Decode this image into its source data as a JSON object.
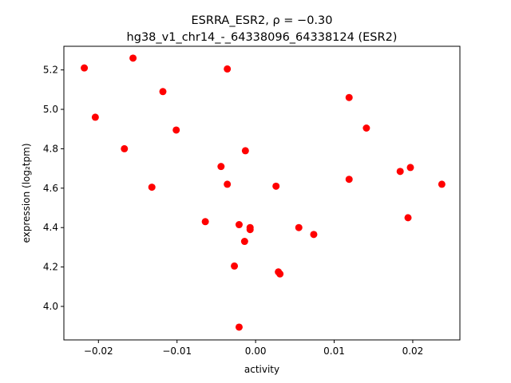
{
  "chart_data": {
    "type": "scatter",
    "title_line1": "ESRRA_ESR2, ρ = −0.30",
    "title_line2": "hg38_v1_chr14_-_64338096_64338124 (ESR2)",
    "xlabel": "activity",
    "ylabel": "expression (log₂tpm)",
    "xlim": [
      -0.0244,
      0.026
    ],
    "ylim": [
      3.83,
      5.32
    ],
    "xticks": [
      {
        "value": -0.02,
        "label": "−0.02"
      },
      {
        "value": -0.01,
        "label": "−0.01"
      },
      {
        "value": 0.0,
        "label": "0.00"
      },
      {
        "value": 0.01,
        "label": "0.01"
      },
      {
        "value": 0.02,
        "label": "0.02"
      }
    ],
    "yticks": [
      {
        "value": 4.0,
        "label": "4.0"
      },
      {
        "value": 4.2,
        "label": "4.2"
      },
      {
        "value": 4.4,
        "label": "4.4"
      },
      {
        "value": 4.6,
        "label": "4.6"
      },
      {
        "value": 4.8,
        "label": "4.8"
      },
      {
        "value": 5.0,
        "label": "5.0"
      },
      {
        "value": 5.2,
        "label": "5.2"
      }
    ],
    "point_color": "#ff0000",
    "grid": false,
    "points": [
      {
        "x": -0.0218,
        "y": 5.21
      },
      {
        "x": -0.0156,
        "y": 5.26
      },
      {
        "x": -0.0036,
        "y": 5.205
      },
      {
        "x": -0.0118,
        "y": 5.09
      },
      {
        "x": -0.0204,
        "y": 4.96
      },
      {
        "x": -0.0101,
        "y": 4.895
      },
      {
        "x": -0.0167,
        "y": 4.8
      },
      {
        "x": -0.0013,
        "y": 4.79
      },
      {
        "x": -0.0044,
        "y": 4.71
      },
      {
        "x": -0.0036,
        "y": 4.62
      },
      {
        "x": -0.0132,
        "y": 4.605
      },
      {
        "x": 0.0026,
        "y": 4.61
      },
      {
        "x": -0.0064,
        "y": 4.43
      },
      {
        "x": -0.0021,
        "y": 4.415
      },
      {
        "x": -0.0007,
        "y": 4.4
      },
      {
        "x": -0.0007,
        "y": 4.39
      },
      {
        "x": -0.0014,
        "y": 4.33
      },
      {
        "x": -0.0027,
        "y": 4.205
      },
      {
        "x": 0.0029,
        "y": 4.175
      },
      {
        "x": 0.0031,
        "y": 4.165
      },
      {
        "x": 0.0055,
        "y": 4.4
      },
      {
        "x": 0.0074,
        "y": 4.365
      },
      {
        "x": -0.0021,
        "y": 3.895
      },
      {
        "x": 0.0119,
        "y": 5.06
      },
      {
        "x": 0.0141,
        "y": 4.905
      },
      {
        "x": 0.0119,
        "y": 4.645
      },
      {
        "x": 0.0184,
        "y": 4.685
      },
      {
        "x": 0.0197,
        "y": 4.705
      },
      {
        "x": 0.0194,
        "y": 4.45
      },
      {
        "x": 0.0237,
        "y": 4.62
      }
    ]
  }
}
